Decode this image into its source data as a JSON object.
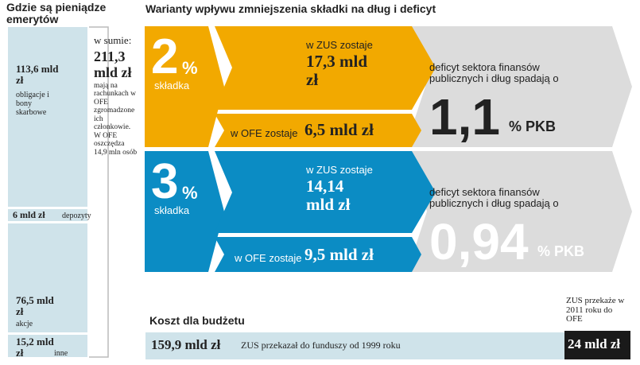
{
  "left": {
    "title": "Gdzie są pieniądze emerytów",
    "segments": [
      {
        "amount": "113,6 mld zł",
        "label": "obligacje i bony skarbowe"
      },
      {
        "amount": "6 mld zł",
        "label": "depozyty"
      },
      {
        "amount": "76,5 mld zł",
        "label": "akcje"
      },
      {
        "amount": "15,2 mld zł",
        "label": "inne"
      }
    ],
    "sum_label": "w sumie:",
    "sum": "211,3 mld zł",
    "sum_note": "mają na rachunkach w OFE zgromadzone ich członkowie. W OFE oszczędza 14,9 mln osób"
  },
  "right": {
    "title": "Warianty wpływu zmniejszenia składki na dług i deficyt",
    "variants": [
      {
        "rate": "2",
        "unit": "%",
        "rate_label": "składka",
        "zus_label": "w ZUS zostaje",
        "zus": "17,3 mld zł",
        "ofe_label": "w OFE zostaje",
        "ofe": "6,5 mld zł",
        "effect_label": "deficyt sektora finansów publicznych i dług spadają o",
        "effect": "1,1",
        "effect_unit": "% PKB"
      },
      {
        "rate": "3",
        "unit": "%",
        "rate_label": "składka",
        "zus_label": "w ZUS zostaje",
        "zus": "14,14 mld zł",
        "ofe_label": "w OFE zostaje",
        "ofe": "9,5 mld zł",
        "effect_label": "deficyt sektora finansów publicznych i dług spadają o",
        "effect": "0,94",
        "effect_unit": "% PKB"
      }
    ]
  },
  "bottom": {
    "title": "Koszt dla budżetu",
    "amount": "159,9 mld zł",
    "note": "ZUS przekazał do funduszy od 1999 roku",
    "next_note": "ZUS przekaże w 2011 roku do OFE",
    "next_amount": "24 mld zł"
  }
}
